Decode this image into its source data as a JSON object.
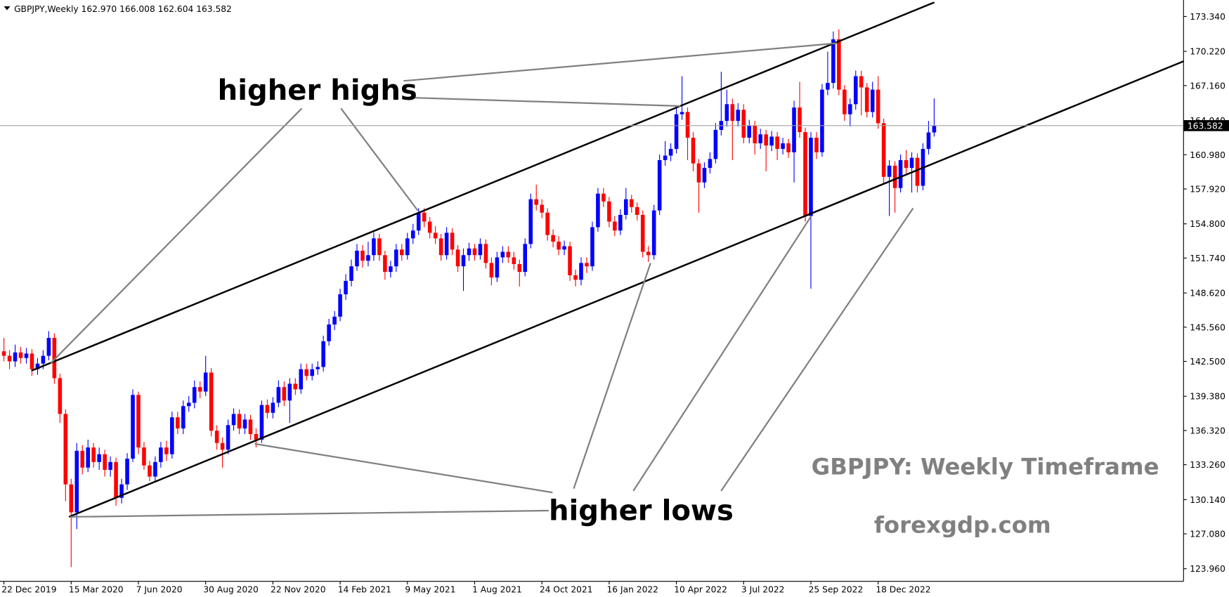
{
  "chart_data": {
    "type": "candlestick",
    "title": "GBPJPY,Weekly  162.970 166.008 162.604 163.582",
    "annotations": {
      "highs": "higher highs",
      "lows": "higher lows",
      "timeframe": "GBPJPY: Weekly Timeframe",
      "site": "forexgdp.com"
    },
    "up_color": "#0000ff",
    "down_color": "#ff0000",
    "open": [
      143.4,
      143.0,
      142.5,
      143.3,
      142.8,
      143.2,
      141.8,
      142.3,
      143.0,
      144.6,
      141.0,
      137.8,
      131.5,
      129.0,
      134.5,
      133.0,
      134.8,
      133.5,
      134.2,
      132.8,
      133.5,
      130.3,
      131.5,
      133.8,
      139.5,
      134.8,
      133.2,
      132.2,
      133.5,
      134.8,
      134.2,
      137.5,
      136.5,
      138.5,
      138.8,
      140.2,
      139.8,
      141.5,
      136.3,
      135.2,
      134.6,
      136.8,
      137.8,
      136.5,
      137.3,
      136.0,
      135.5,
      138.6,
      137.9,
      138.8,
      140.2,
      139.0,
      140.5,
      140.0,
      141.8,
      141.2,
      141.8,
      142.0,
      144.3,
      145.8,
      146.5,
      148.5,
      149.7,
      151.0,
      152.4,
      151.5,
      152.0,
      153.5,
      152.0,
      150.5,
      151.0,
      152.5,
      152.0,
      153.5,
      154.2,
      155.8,
      155.0,
      154.0,
      153.5,
      152.0,
      154.0,
      152.5,
      151.0,
      152.0,
      152.6,
      152.0,
      153.0,
      151.3,
      150.0,
      151.8,
      152.3,
      151.8,
      151.2,
      150.5,
      153.0,
      157.0,
      156.5,
      155.8,
      153.8,
      153.2,
      152.5,
      152.8,
      150.2,
      149.8,
      151.3,
      151.0,
      154.5,
      157.5,
      156.8,
      155.0,
      154.2,
      155.6,
      157.0,
      156.3,
      155.6,
      152.3,
      152.0,
      156.0,
      160.5,
      160.9,
      161.5,
      164.6,
      164.8,
      162.5,
      160.2,
      158.5,
      159.8,
      160.6,
      163.2,
      164.0,
      165.5,
      164.0,
      165.0,
      162.5,
      163.6,
      162.0,
      162.8,
      161.8,
      162.6,
      161.5,
      162.0,
      161.2,
      165.2,
      163.0,
      155.5,
      162.5,
      161.2,
      166.8,
      167.4,
      171.3,
      166.8,
      164.6,
      165.5,
      168.0,
      167.0,
      164.8,
      166.8,
      163.8,
      159.0,
      160.0,
      158.0,
      160.5,
      159.8,
      160.7,
      158.2,
      161.5,
      162.97
    ],
    "high": [
      144.6,
      143.5,
      144.0,
      143.8,
      143.7,
      143.6,
      142.8,
      143.5,
      145.2,
      145.0,
      141.4,
      138.2,
      132.0,
      135.2,
      135.0,
      135.5,
      135.2,
      134.8,
      134.6,
      134.0,
      133.9,
      132.0,
      134.3,
      140.0,
      139.8,
      135.3,
      133.6,
      134.0,
      135.3,
      135.4,
      138.0,
      138.0,
      139.0,
      139.4,
      140.8,
      140.7,
      143.0,
      141.9,
      136.8,
      135.7,
      137.3,
      138.3,
      138.2,
      137.8,
      137.7,
      136.5,
      139.0,
      139.1,
      139.3,
      140.8,
      140.7,
      141.0,
      141.0,
      142.3,
      142.3,
      142.3,
      142.5,
      144.8,
      146.3,
      147.0,
      149.0,
      150.3,
      151.6,
      153.0,
      152.9,
      153.2,
      154.0,
      153.9,
      152.4,
      151.5,
      153.0,
      153.0,
      154.0,
      154.8,
      156.2,
      156.2,
      155.4,
      154.6,
      153.9,
      154.5,
      154.4,
      152.9,
      152.6,
      153.1,
      153.0,
      153.5,
      153.4,
      151.8,
      152.3,
      152.8,
      152.8,
      152.3,
      151.6,
      153.5,
      157.5,
      158.3,
      157.0,
      156.2,
      154.3,
      153.7,
      153.3,
      153.2,
      150.7,
      151.8,
      151.8,
      155.0,
      158.0,
      158.0,
      157.2,
      155.5,
      156.1,
      158.0,
      157.4,
      156.7,
      156.0,
      152.8,
      156.5,
      161.0,
      162.2,
      162.0,
      165.2,
      168.0,
      165.2,
      163.0,
      160.6,
      160.3,
      161.2,
      163.8,
      168.4,
      166.8,
      166.0,
      165.6,
      165.5,
      164.1,
      164.0,
      163.3,
      163.2,
      163.1,
      163.0,
      162.5,
      162.4,
      165.8,
      167.5,
      163.4,
      163.0,
      163.0,
      167.3,
      170.2,
      172.0,
      172.2,
      167.2,
      166.0,
      168.5,
      168.5,
      167.4,
      167.5,
      168.0,
      164.2,
      160.5,
      160.4,
      161.0,
      161.4,
      161.2,
      161.1,
      162.0,
      164.0,
      166.008
    ],
    "low": [
      142.5,
      141.8,
      142.0,
      142.3,
      142.3,
      141.2,
      141.3,
      141.8,
      142.6,
      140.5,
      137.0,
      130.0,
      124.1,
      127.5,
      132.4,
      132.6,
      133.0,
      132.8,
      132.2,
      132.2,
      129.6,
      129.8,
      131.0,
      133.5,
      134.2,
      132.8,
      131.8,
      131.8,
      133.0,
      133.6,
      133.8,
      136.0,
      136.0,
      138.0,
      138.3,
      139.2,
      139.4,
      135.8,
      134.6,
      133.0,
      134.2,
      136.3,
      136.0,
      136.0,
      135.5,
      134.8,
      135.2,
      137.4,
      137.4,
      138.4,
      138.5,
      137.0,
      139.5,
      139.6,
      140.8,
      140.8,
      141.3,
      141.6,
      143.9,
      145.3,
      146.1,
      148.0,
      149.2,
      150.6,
      150.9,
      151.0,
      151.5,
      151.5,
      149.8,
      150.0,
      150.5,
      151.5,
      151.6,
      153.0,
      153.8,
      154.5,
      153.5,
      153.0,
      151.5,
      151.6,
      152.0,
      150.5,
      148.8,
      151.5,
      151.5,
      151.6,
      150.8,
      149.3,
      149.6,
      151.3,
      151.3,
      150.7,
      149.2,
      150.1,
      152.6,
      156.0,
      155.3,
      153.3,
      152.7,
      152.0,
      152.0,
      149.7,
      149.2,
      149.3,
      150.4,
      150.6,
      154.1,
      156.3,
      154.5,
      153.7,
      153.8,
      155.2,
      155.8,
      155.1,
      151.8,
      151.4,
      151.6,
      155.6,
      160.0,
      160.4,
      161.1,
      164.1,
      160.5,
      159.5,
      155.8,
      158.0,
      159.3,
      160.2,
      162.7,
      163.5,
      160.5,
      163.5,
      162.0,
      162.0,
      161.0,
      161.5,
      159.5,
      161.3,
      160.5,
      161.0,
      160.7,
      158.5,
      162.5,
      155.0,
      149.0,
      160.6,
      160.8,
      166.3,
      166.9,
      166.3,
      164.0,
      163.5,
      165.0,
      164.5,
      164.3,
      164.3,
      163.3,
      158.4,
      155.5,
      155.8,
      157.6,
      159.3,
      157.6,
      157.6,
      157.8,
      161.0,
      162.604
    ],
    "close": [
      143.0,
      142.5,
      143.3,
      142.8,
      143.2,
      141.8,
      142.3,
      143.0,
      144.6,
      141.0,
      137.8,
      131.5,
      129.0,
      134.5,
      133.0,
      134.8,
      133.5,
      134.2,
      132.8,
      133.5,
      130.3,
      131.5,
      133.8,
      139.5,
      134.8,
      133.2,
      132.2,
      133.5,
      134.8,
      134.2,
      137.5,
      136.5,
      138.5,
      138.8,
      140.2,
      139.8,
      141.5,
      136.3,
      135.2,
      134.6,
      136.8,
      137.8,
      136.5,
      137.3,
      136.0,
      135.5,
      138.6,
      137.9,
      138.8,
      140.2,
      139.0,
      140.5,
      140.0,
      141.8,
      141.2,
      141.8,
      142.0,
      144.3,
      145.8,
      146.5,
      148.5,
      149.7,
      151.0,
      152.4,
      151.5,
      152.0,
      153.5,
      152.0,
      150.5,
      151.0,
      152.5,
      152.0,
      153.5,
      154.2,
      155.8,
      155.0,
      154.0,
      153.5,
      152.0,
      154.0,
      152.5,
      151.0,
      152.0,
      152.6,
      152.0,
      153.0,
      151.3,
      150.0,
      151.8,
      152.3,
      151.8,
      151.2,
      150.5,
      153.0,
      157.0,
      156.5,
      155.8,
      153.8,
      153.2,
      152.5,
      152.8,
      150.2,
      149.8,
      151.3,
      151.0,
      154.5,
      157.5,
      156.8,
      155.0,
      154.2,
      155.6,
      157.0,
      156.3,
      155.6,
      152.3,
      152.0,
      156.0,
      160.5,
      160.9,
      161.5,
      164.6,
      164.8,
      162.5,
      160.2,
      158.5,
      159.8,
      160.6,
      163.2,
      164.0,
      165.5,
      164.0,
      165.0,
      162.5,
      163.6,
      162.0,
      162.8,
      161.8,
      162.6,
      161.5,
      162.0,
      161.2,
      165.2,
      163.0,
      155.5,
      162.5,
      161.2,
      166.8,
      167.4,
      171.3,
      166.8,
      164.6,
      165.5,
      168.0,
      167.0,
      164.8,
      166.8,
      163.8,
      159.0,
      160.0,
      158.0,
      160.5,
      159.8,
      160.7,
      158.2,
      161.5,
      162.97,
      163.582
    ],
    "current_price": {
      "value": 163.582,
      "label": "163.582"
    },
    "xlim": [
      -0.7,
      210.5
    ],
    "xticks": [
      {
        "value": 0,
        "label": "22 Dec 2019"
      },
      {
        "value": 12,
        "label": "15 Mar 2020"
      },
      {
        "value": 24,
        "label": "7 Jun 2020"
      },
      {
        "value": 36,
        "label": "30 Aug 2020"
      },
      {
        "value": 48,
        "label": "22 Nov 2020"
      },
      {
        "value": 60,
        "label": "14 Feb 2021"
      },
      {
        "value": 72,
        "label": "9 May 2021"
      },
      {
        "value": 84,
        "label": "1 Aug 2021"
      },
      {
        "value": 96,
        "label": "24 Oct 2021"
      },
      {
        "value": 108,
        "label": "16 Jan 2022"
      },
      {
        "value": 120,
        "label": "10 Apr 2022"
      },
      {
        "value": 132,
        "label": "3 Jul 2022"
      },
      {
        "value": 144,
        "label": "25 Sep 2022"
      },
      {
        "value": 156,
        "label": "18 Dec 2022"
      }
    ],
    "ylim": [
      122.836,
      174.815
    ],
    "yticks": [
      {
        "value": 173.34,
        "label": "173.340"
      },
      {
        "value": 170.22,
        "label": "170.220"
      },
      {
        "value": 167.16,
        "label": "167.160"
      },
      {
        "value": 164.04,
        "label": "164.040"
      },
      {
        "value": 160.98,
        "label": "160.980"
      },
      {
        "value": 157.92,
        "label": "157.920"
      },
      {
        "value": 154.8,
        "label": "154.800"
      },
      {
        "value": 151.74,
        "label": "151.740"
      },
      {
        "value": 148.62,
        "label": "148.620"
      },
      {
        "value": 145.56,
        "label": "145.560"
      },
      {
        "value": 142.5,
        "label": "142.500"
      },
      {
        "value": 139.38,
        "label": "139.380"
      },
      {
        "value": 136.32,
        "label": "136.320"
      },
      {
        "value": 133.26,
        "label": "133.260"
      },
      {
        "value": 130.14,
        "label": "130.140"
      },
      {
        "value": 127.08,
        "label": "127.080"
      },
      {
        "value": 123.96,
        "label": "123.960"
      }
    ]
  }
}
